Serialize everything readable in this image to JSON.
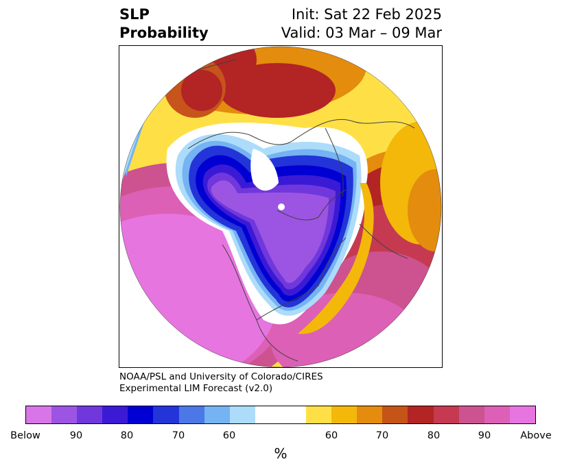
{
  "title": {
    "left_line1": "SLP",
    "left_line2": "Probability",
    "right_line1": "Init: Sat 22 Feb 2025",
    "right_line2": "Valid: 03 Mar – 09 Mar"
  },
  "credit": {
    "line1": "NOAA/PSL and University of Colorado/CIRES",
    "line2": "Experimental LIM Forecast (v2.0)"
  },
  "colorbar": {
    "unit": "%",
    "colors": [
      "#d876e8",
      "#9c55e2",
      "#7038dc",
      "#3b1ad6",
      "#0000d2",
      "#2334d8",
      "#4b78e6",
      "#75b3f2",
      "#addcfb",
      "#ffffff",
      "#fee046",
      "#f3b80a",
      "#e38c0e",
      "#c55418",
      "#b32424",
      "#c53a50",
      "#cd5290",
      "#dc60b6",
      "#e675e0"
    ],
    "tick_labels": [
      "Below",
      "90",
      "80",
      "70",
      "60",
      "60",
      "70",
      "80",
      "90",
      "Above"
    ]
  },
  "map": {
    "colors": {
      "pink": "#df6ad0",
      "magenta": "#d35ca9",
      "rose": "#c8455c",
      "red": "#b5242a",
      "darkorange": "#c7541b",
      "orange": "#e48e10",
      "gold": "#f3b80a",
      "yellow": "#fee046",
      "white": "#ffffff",
      "paleblue": "#addcfb",
      "skyblue": "#75b3f2",
      "blue": "#4b78e6",
      "royal": "#2334d8",
      "navy": "#0000d2",
      "indigo": "#3b1ad6",
      "violet": "#7038dc",
      "purple": "#9c55e2",
      "lilac": "#d876e8",
      "coast": "#404040"
    }
  }
}
